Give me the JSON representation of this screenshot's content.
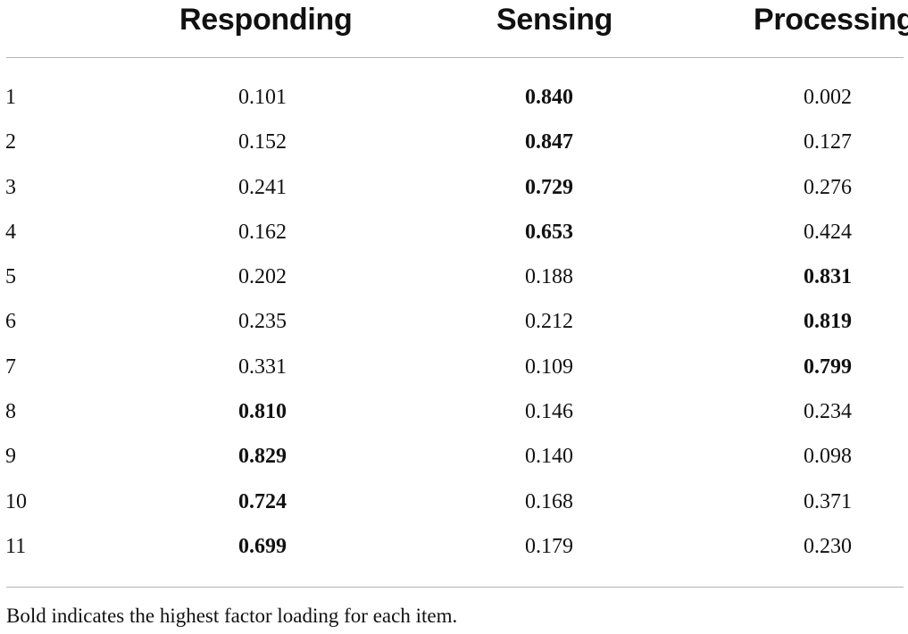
{
  "table": {
    "columns": {
      "item": "",
      "responding": "Responding",
      "sensing": "Sensing",
      "processing": "Processing"
    },
    "rows": [
      {
        "item": "1",
        "responding": "0.101",
        "sensing": "0.840",
        "processing": "0.002",
        "bold": "sensing"
      },
      {
        "item": "2",
        "responding": "0.152",
        "sensing": "0.847",
        "processing": "0.127",
        "bold": "sensing"
      },
      {
        "item": "3",
        "responding": "0.241",
        "sensing": "0.729",
        "processing": "0.276",
        "bold": "sensing"
      },
      {
        "item": "4",
        "responding": "0.162",
        "sensing": "0.653",
        "processing": "0.424",
        "bold": "sensing"
      },
      {
        "item": "5",
        "responding": "0.202",
        "sensing": "0.188",
        "processing": "0.831",
        "bold": "processing"
      },
      {
        "item": "6",
        "responding": "0.235",
        "sensing": "0.212",
        "processing": "0.819",
        "bold": "processing"
      },
      {
        "item": "7",
        "responding": "0.331",
        "sensing": "0.109",
        "processing": "0.799",
        "bold": "processing"
      },
      {
        "item": "8",
        "responding": "0.810",
        "sensing": "0.146",
        "processing": "0.234",
        "bold": "responding"
      },
      {
        "item": "9",
        "responding": "0.829",
        "sensing": "0.140",
        "processing": "0.098",
        "bold": "responding"
      },
      {
        "item": "10",
        "responding": "0.724",
        "sensing": "0.168",
        "processing": "0.371",
        "bold": "responding"
      },
      {
        "item": "11",
        "responding": "0.699",
        "sensing": "0.179",
        "processing": "0.230",
        "bold": "responding"
      }
    ],
    "footnote": "Bold indicates the highest factor loading for each item."
  }
}
